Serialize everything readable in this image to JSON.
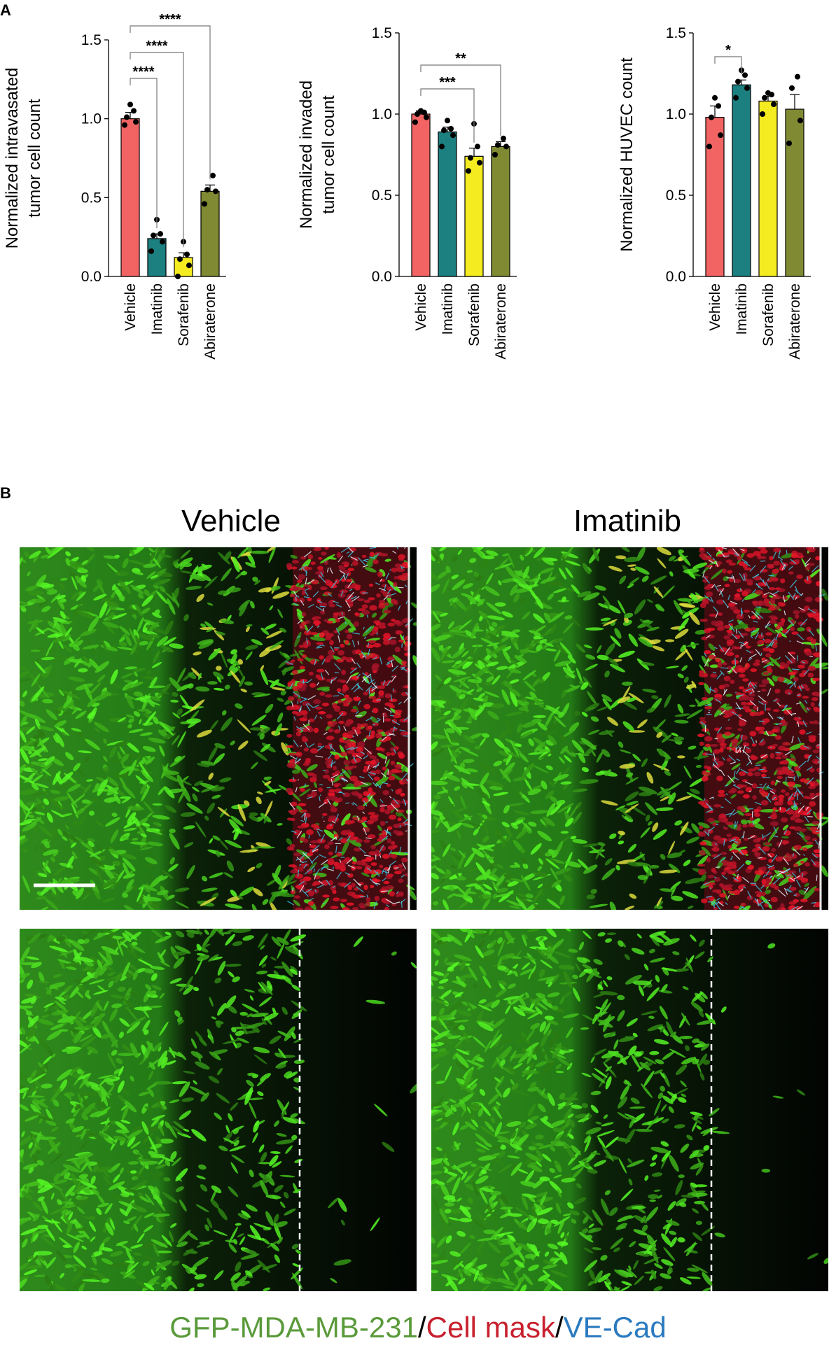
{
  "panel_a_label": "A",
  "panel_b_label": "B",
  "colors": {
    "Vehicle": "#f26464",
    "Imatinib": "#1c7f80",
    "Sorafenib": "#f4ec20",
    "Abiraterone": "#7f8a32"
  },
  "chart_data": [
    {
      "type": "bar",
      "categories": [
        "Vehicle",
        "Imatinib",
        "Sorafenib",
        "Abiraterone"
      ],
      "values": [
        1.0,
        0.24,
        0.12,
        0.54
      ],
      "errors": [
        0.04,
        0.03,
        0.03,
        0.04
      ],
      "points": [
        [
          0.96,
          0.98,
          1.01,
          1.05,
          1.09
        ],
        [
          0.16,
          0.22,
          0.26,
          0.27,
          0.36
        ],
        [
          0.0,
          0.07,
          0.11,
          0.14,
          0.22
        ],
        [
          0.46,
          0.54,
          0.55,
          0.64
        ]
      ],
      "ylabel": [
        "Normalized intravasated",
        "tumor cell count"
      ],
      "yticks": [
        "0.0",
        "0.5",
        "1.0",
        "1.5"
      ],
      "ylim": [
        0,
        1.5
      ],
      "significance": [
        {
          "from": 0,
          "to": 1,
          "label": "****"
        },
        {
          "from": 0,
          "to": 2,
          "label": "****"
        },
        {
          "from": 0,
          "to": 3,
          "label": "****"
        }
      ]
    },
    {
      "type": "bar",
      "categories": [
        "Vehicle",
        "Imatinib",
        "Sorafenib",
        "Abiraterone"
      ],
      "values": [
        1.0,
        0.89,
        0.74,
        0.8
      ],
      "errors": [
        0.02,
        0.03,
        0.05,
        0.03
      ],
      "points": [
        [
          0.95,
          0.98,
          1.0,
          1.01,
          1.02
        ],
        [
          0.8,
          0.87,
          0.9,
          0.91,
          0.96
        ],
        [
          0.65,
          0.7,
          0.73,
          0.8,
          0.94
        ],
        [
          0.75,
          0.8,
          0.81,
          0.85
        ]
      ],
      "ylabel": [
        "Normalized invaded",
        "tumor cell count"
      ],
      "yticks": [
        "0.0",
        "0.5",
        "1.0",
        "1.5"
      ],
      "ylim": [
        0,
        1.5
      ],
      "significance": [
        {
          "from": 0,
          "to": 2,
          "label": "***"
        },
        {
          "from": 0,
          "to": 3,
          "label": "**"
        }
      ]
    },
    {
      "type": "bar",
      "categories": [
        "Vehicle",
        "Imatinib",
        "Sorafenib",
        "Abiraterone"
      ],
      "values": [
        0.98,
        1.18,
        1.08,
        1.03
      ],
      "errors": [
        0.07,
        0.03,
        0.03,
        0.09
      ],
      "points": [
        [
          0.8,
          0.87,
          0.98,
          1.05,
          1.1
        ],
        [
          1.1,
          1.16,
          1.2,
          1.24,
          1.27
        ],
        [
          1.0,
          1.06,
          1.1,
          1.12,
          1.13
        ],
        [
          0.82,
          0.96,
          1.16,
          1.23
        ]
      ],
      "ylabel": [
        "Normalized HUVEC count"
      ],
      "yticks": [
        "0.0",
        "0.5",
        "1.0",
        "1.5"
      ],
      "ylim": [
        0,
        1.5
      ],
      "significance": [
        {
          "from": 0,
          "to": 1,
          "label": "*"
        }
      ]
    }
  ],
  "panel_b": {
    "conditions": [
      "Vehicle",
      "Imatinib"
    ],
    "legend": {
      "part1": "GFP-MDA-MB-231",
      "sep1": "/",
      "part2": "Cell mask",
      "sep2": "/",
      "part3": "VE-Cad"
    }
  }
}
